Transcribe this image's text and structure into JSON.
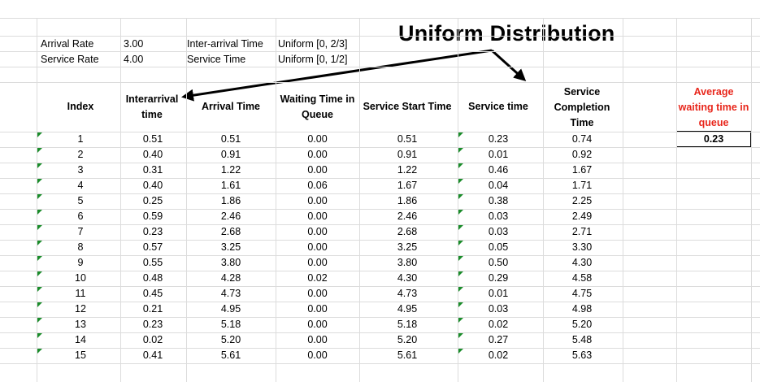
{
  "params": {
    "arrival_rate_label": "Arrival Rate",
    "arrival_rate_value": "3.00",
    "service_rate_label": "Service Rate",
    "service_rate_value": "4.00",
    "interarrival_label": "Inter-arrival Time",
    "interarrival_value": "Uniform [0, 2/3]",
    "service_time_label": "Service Time",
    "service_time_value": "Uniform [0, 1/2]"
  },
  "title": "Uniform Distribution",
  "headers": {
    "index": "Index",
    "interarrival": "Interarrival time",
    "arrival": "Arrival Time",
    "waiting": "Waiting Time in Queue",
    "start": "Service Start Time",
    "service": "Service time",
    "completion": "Service Completion Time"
  },
  "summary": {
    "label": "Average waiting time in queue",
    "value": "0.23"
  },
  "colors": {
    "accent_red": "#e8261b",
    "flag_green": "#1a8c2a"
  },
  "rows": [
    [
      "1",
      "0.51",
      "0.51",
      "0.00",
      "0.51",
      "0.23",
      "0.74"
    ],
    [
      "2",
      "0.40",
      "0.91",
      "0.00",
      "0.91",
      "0.01",
      "0.92"
    ],
    [
      "3",
      "0.31",
      "1.22",
      "0.00",
      "1.22",
      "0.46",
      "1.67"
    ],
    [
      "4",
      "0.40",
      "1.61",
      "0.06",
      "1.67",
      "0.04",
      "1.71"
    ],
    [
      "5",
      "0.25",
      "1.86",
      "0.00",
      "1.86",
      "0.38",
      "2.25"
    ],
    [
      "6",
      "0.59",
      "2.46",
      "0.00",
      "2.46",
      "0.03",
      "2.49"
    ],
    [
      "7",
      "0.23",
      "2.68",
      "0.00",
      "2.68",
      "0.03",
      "2.71"
    ],
    [
      "8",
      "0.57",
      "3.25",
      "0.00",
      "3.25",
      "0.05",
      "3.30"
    ],
    [
      "9",
      "0.55",
      "3.80",
      "0.00",
      "3.80",
      "0.50",
      "4.30"
    ],
    [
      "10",
      "0.48",
      "4.28",
      "0.02",
      "4.30",
      "0.29",
      "4.58"
    ],
    [
      "11",
      "0.45",
      "4.73",
      "0.00",
      "4.73",
      "0.01",
      "4.75"
    ],
    [
      "12",
      "0.21",
      "4.95",
      "0.00",
      "4.95",
      "0.03",
      "4.98"
    ],
    [
      "13",
      "0.23",
      "5.18",
      "0.00",
      "5.18",
      "0.02",
      "5.20"
    ],
    [
      "14",
      "0.02",
      "5.20",
      "0.00",
      "5.20",
      "0.27",
      "5.48"
    ],
    [
      "15",
      "0.41",
      "5.61",
      "0.00",
      "5.61",
      "0.02",
      "5.63"
    ]
  ]
}
